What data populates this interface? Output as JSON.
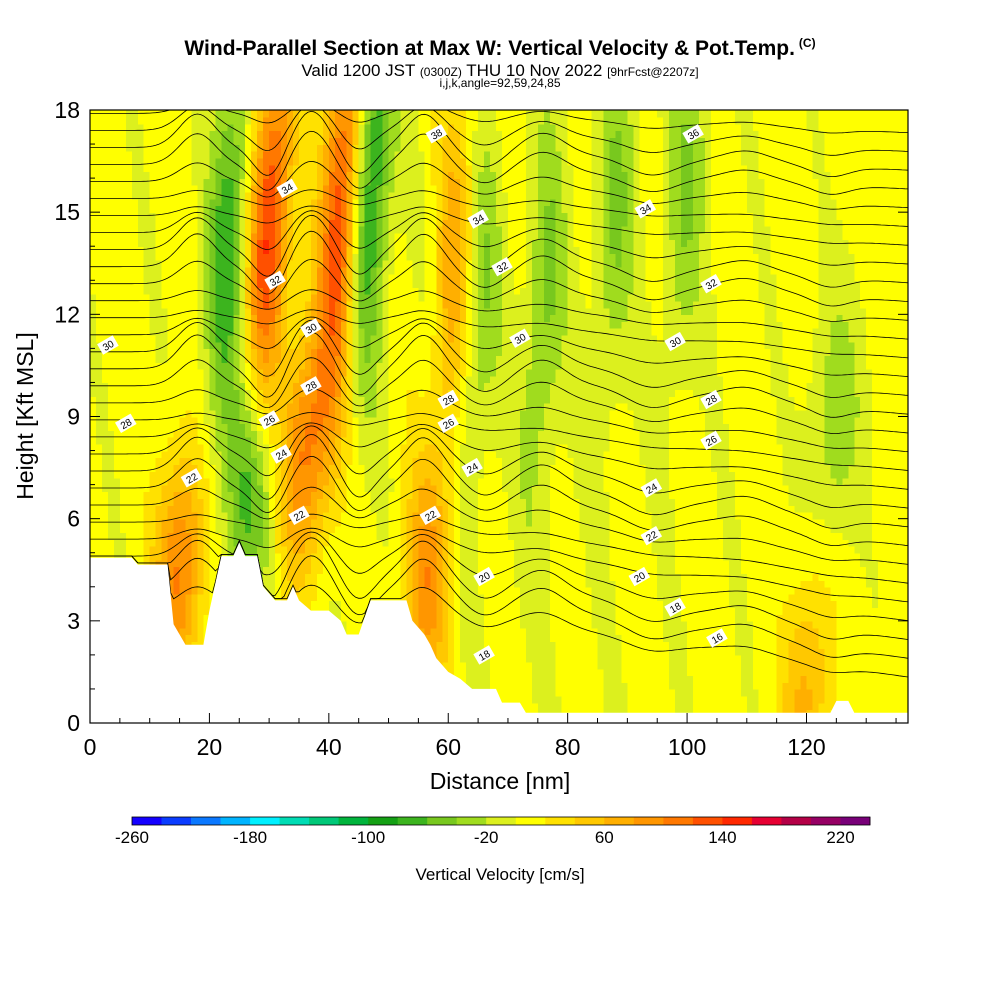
{
  "header": {
    "title": "Wind-Parallel Section at Max W: Vertical Velocity & Pot.Temp.",
    "copyright_tag": "(C)",
    "valid_prefix": "Valid 1200 JST",
    "valid_utc": "(0300Z)",
    "valid_date": "THU 10 Nov 2022",
    "forecast": "[9hrFcst@2207z]",
    "indices": "i,j,k,angle=92,59,24,85"
  },
  "chart_data": {
    "type": "heatmap",
    "xlabel": "Distance [nm]",
    "ylabel": "Height [Kft MSL]",
    "xlim": [
      0,
      137
    ],
    "ylim": [
      0,
      18
    ],
    "x_ticks": [
      0,
      20,
      40,
      60,
      80,
      100,
      120
    ],
    "y_ticks": [
      0,
      3,
      6,
      9,
      12,
      15,
      18
    ],
    "colorbar": {
      "label": "Vertical Velocity [cm/s]",
      "min": -260,
      "max": 240,
      "step": 20,
      "tick_values": [
        -260,
        -180,
        -100,
        -20,
        60,
        140,
        220
      ],
      "colors": [
        "#1400ff",
        "#0a3cff",
        "#0a78ff",
        "#00b4ff",
        "#00f0ff",
        "#00dcb4",
        "#00c878",
        "#00b43c",
        "#14a014",
        "#3cb41e",
        "#78c81e",
        "#a0dc1e",
        "#dcf01e",
        "#ffff00",
        "#ffe100",
        "#ffc800",
        "#ffaf00",
        "#ff9600",
        "#ff7800",
        "#ff5000",
        "#ff2800",
        "#e60032",
        "#b40046",
        "#960064",
        "#780078"
      ]
    },
    "terrain_kft": [
      [
        0,
        4.85
      ],
      [
        7,
        4.85
      ],
      [
        8,
        4.65
      ],
      [
        13,
        4.65
      ],
      [
        14,
        2.9
      ],
      [
        16,
        2.3
      ],
      [
        19,
        2.3
      ],
      [
        20,
        3.3
      ],
      [
        22,
        4.9
      ],
      [
        24,
        4.9
      ],
      [
        25,
        5.3
      ],
      [
        26,
        4.9
      ],
      [
        28,
        4.9
      ],
      [
        29,
        4.0
      ],
      [
        31,
        3.6
      ],
      [
        33,
        3.6
      ],
      [
        34,
        4.0
      ],
      [
        35,
        3.6
      ],
      [
        37,
        3.3
      ],
      [
        40,
        3.3
      ],
      [
        42,
        3.0
      ],
      [
        43,
        2.6
      ],
      [
        45,
        2.6
      ],
      [
        47,
        3.6
      ],
      [
        53,
        3.6
      ],
      [
        54,
        3.0
      ],
      [
        56,
        2.6
      ],
      [
        57,
        2.3
      ],
      [
        58,
        1.9
      ],
      [
        60,
        1.5
      ],
      [
        62,
        1.3
      ],
      [
        64,
        1.0
      ],
      [
        68,
        1.0
      ],
      [
        69,
        0.6
      ],
      [
        72,
        0.6
      ],
      [
        73,
        0.3
      ],
      [
        124,
        0.3
      ],
      [
        125,
        0.65
      ],
      [
        127,
        0.65
      ],
      [
        128,
        0.3
      ],
      [
        137,
        0.3
      ]
    ],
    "updraft_cores": [
      {
        "x": 15,
        "z": 4.5,
        "w": 100
      },
      {
        "x": 30,
        "z": 14.5,
        "w": 140
      },
      {
        "x": 42,
        "z": 15.0,
        "w": 140
      },
      {
        "x": 36,
        "z": 8.0,
        "w": 100
      },
      {
        "x": 56,
        "z": 4.0,
        "w": 80
      },
      {
        "x": 61,
        "z": 13.0,
        "w": 70
      },
      {
        "x": 120,
        "z": 0.9,
        "w": 60
      }
    ],
    "downdraft_cores": [
      {
        "x": 23,
        "z": 14.0,
        "w": -80
      },
      {
        "x": 27,
        "z": 7.0,
        "w": -80
      },
      {
        "x": 47,
        "z": 16.0,
        "w": -100
      },
      {
        "x": 65,
        "z": 12.0,
        "w": -50
      },
      {
        "x": 76,
        "z": 12.0,
        "w": -50
      },
      {
        "x": 88,
        "z": 15.0,
        "w": -45
      },
      {
        "x": 100,
        "z": 16.0,
        "w": -45
      },
      {
        "x": 125,
        "z": 9.0,
        "w": -40
      }
    ],
    "isentrope_labels": [
      {
        "x": 58,
        "z": 17.3,
        "text": "38"
      },
      {
        "x": 101,
        "z": 17.3,
        "text": "36"
      },
      {
        "x": 33,
        "z": 15.7,
        "text": "34"
      },
      {
        "x": 65,
        "z": 14.8,
        "text": "34"
      },
      {
        "x": 93,
        "z": 15.1,
        "text": "34"
      },
      {
        "x": 31,
        "z": 13.0,
        "text": "32"
      },
      {
        "x": 69,
        "z": 13.4,
        "text": "32"
      },
      {
        "x": 104,
        "z": 12.9,
        "text": "32"
      },
      {
        "x": 37,
        "z": 11.6,
        "text": "30"
      },
      {
        "x": 3,
        "z": 11.1,
        "text": "30"
      },
      {
        "x": 72,
        "z": 11.3,
        "text": "30"
      },
      {
        "x": 98,
        "z": 11.2,
        "text": "30"
      },
      {
        "x": 37,
        "z": 9.9,
        "text": "28"
      },
      {
        "x": 60,
        "z": 9.5,
        "text": "28"
      },
      {
        "x": 104,
        "z": 9.5,
        "text": "28"
      },
      {
        "x": 6,
        "z": 8.8,
        "text": "28"
      },
      {
        "x": 30,
        "z": 8.9,
        "text": "26"
      },
      {
        "x": 60,
        "z": 8.8,
        "text": "26"
      },
      {
        "x": 104,
        "z": 8.3,
        "text": "26"
      },
      {
        "x": 32,
        "z": 7.9,
        "text": "24"
      },
      {
        "x": 64,
        "z": 7.5,
        "text": "24"
      },
      {
        "x": 94,
        "z": 6.9,
        "text": "24"
      },
      {
        "x": 17,
        "z": 7.2,
        "text": "22"
      },
      {
        "x": 35,
        "z": 6.1,
        "text": "22"
      },
      {
        "x": 57,
        "z": 6.1,
        "text": "22"
      },
      {
        "x": 94,
        "z": 5.5,
        "text": "22"
      },
      {
        "x": 66,
        "z": 4.3,
        "text": "20"
      },
      {
        "x": 92,
        "z": 4.3,
        "text": "20"
      },
      {
        "x": 98,
        "z": 3.4,
        "text": "18"
      },
      {
        "x": 66,
        "z": 2.0,
        "text": "18"
      },
      {
        "x": 105,
        "z": 2.5,
        "text": "16"
      }
    ]
  }
}
